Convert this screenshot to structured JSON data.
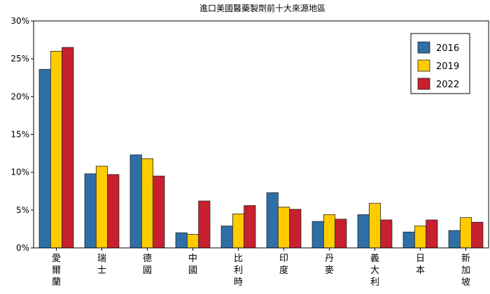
{
  "chart_data": {
    "type": "bar",
    "title": "進口美國醫藥製劑前十大來源地區",
    "xlabel": "",
    "ylabel": "",
    "ylim": [
      0,
      30
    ],
    "yticks": [
      "0%",
      "5%",
      "10%",
      "15%",
      "20%",
      "25%",
      "30%"
    ],
    "categories": [
      "愛爾蘭",
      "瑞士",
      "德國",
      "中國",
      "比利時",
      "印度",
      "丹麥",
      "義大利",
      "日本",
      "新加坡"
    ],
    "series": [
      {
        "name": "2016",
        "color": "#2e6fa8",
        "values": [
          23.6,
          9.8,
          12.3,
          2.0,
          2.9,
          7.3,
          3.5,
          4.4,
          2.1,
          2.3
        ]
      },
      {
        "name": "2019",
        "color": "#ffcc00",
        "values": [
          26.0,
          10.8,
          11.8,
          1.8,
          4.5,
          5.4,
          4.4,
          5.9,
          2.9,
          4.0
        ]
      },
      {
        "name": "2022",
        "color": "#c8202f",
        "values": [
          26.5,
          9.7,
          9.5,
          6.2,
          5.6,
          5.1,
          3.8,
          3.7,
          3.7,
          3.4
        ]
      }
    ],
    "grid": false,
    "legend_position": "top-right"
  }
}
